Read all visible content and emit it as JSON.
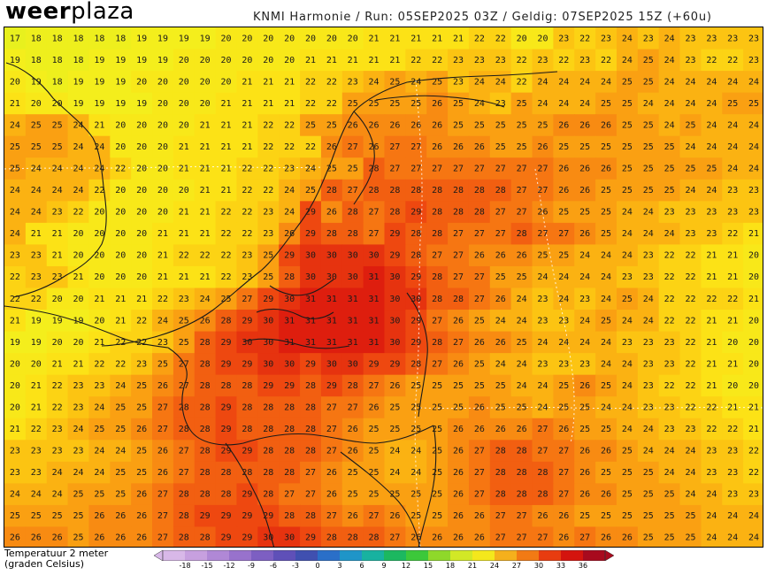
{
  "header": {
    "logo_bold": "weer",
    "logo_light": "plaza",
    "run_info": "KNMI Harmonie / Run: 05SEP2025 03Z / Geldig: 07SEP2025 15Z (+60u)"
  },
  "legend": {
    "title_line1": "Temperatuur 2 meter",
    "title_line2": "(graden Celsius)",
    "ticks": [
      -18,
      -15,
      -12,
      -9,
      -6,
      -3,
      0,
      3,
      6,
      9,
      12,
      15,
      18,
      21,
      24,
      27,
      30,
      33,
      36
    ],
    "colors": [
      "#d8b8e8",
      "#c7a0df",
      "#b088d6",
      "#9872cc",
      "#7d5fc2",
      "#5f50b8",
      "#4050b0",
      "#2a6fc8",
      "#1f95c8",
      "#18b2a0",
      "#1cb860",
      "#3cc83a",
      "#8fd82a",
      "#d2e826",
      "#f4e81c",
      "#f5b01c",
      "#f27a14",
      "#e83c10",
      "#d4140e",
      "#a80a1e"
    ]
  },
  "map": {
    "cols": 36,
    "rows": 24,
    "temps": [
      [
        17,
        18,
        18,
        18,
        18,
        18,
        19,
        19,
        19,
        19,
        20,
        20,
        20,
        20,
        20,
        20,
        20,
        21,
        21,
        21,
        21,
        21,
        22,
        22,
        20,
        20,
        23,
        22,
        23,
        24,
        23,
        24,
        23,
        23,
        23,
        23
      ],
      [
        19,
        18,
        18,
        18,
        19,
        19,
        19,
        19,
        20,
        20,
        20,
        20,
        20,
        20,
        21,
        21,
        21,
        21,
        21,
        22,
        22,
        23,
        23,
        23,
        22,
        23,
        22,
        23,
        22,
        24,
        25,
        24,
        23,
        22,
        22,
        23
      ],
      [
        20,
        19,
        18,
        19,
        19,
        19,
        20,
        20,
        20,
        20,
        20,
        21,
        21,
        21,
        22,
        22,
        23,
        24,
        25,
        24,
        25,
        23,
        24,
        24,
        22,
        24,
        24,
        24,
        24,
        25,
        25,
        24,
        24,
        24,
        24,
        24
      ],
      [
        21,
        20,
        20,
        19,
        19,
        19,
        19,
        20,
        20,
        20,
        21,
        21,
        21,
        21,
        22,
        22,
        25,
        25,
        25,
        25,
        26,
        25,
        24,
        23,
        25,
        24,
        24,
        24,
        25,
        25,
        24,
        24,
        24,
        24,
        25,
        25
      ],
      [
        24,
        25,
        25,
        24,
        21,
        20,
        20,
        20,
        20,
        21,
        21,
        21,
        22,
        22,
        25,
        25,
        26,
        26,
        26,
        26,
        26,
        25,
        25,
        25,
        25,
        25,
        26,
        26,
        26,
        25,
        25,
        24,
        25,
        24,
        24,
        24
      ],
      [
        25,
        25,
        25,
        24,
        24,
        20,
        20,
        20,
        21,
        21,
        21,
        21,
        22,
        22,
        22,
        26,
        27,
        26,
        27,
        27,
        26,
        26,
        26,
        25,
        25,
        26,
        25,
        25,
        25,
        25,
        25,
        25,
        24,
        24,
        24,
        24
      ],
      [
        25,
        24,
        24,
        24,
        24,
        22,
        20,
        20,
        21,
        21,
        21,
        22,
        22,
        23,
        24,
        25,
        25,
        28,
        27,
        27,
        27,
        27,
        27,
        27,
        27,
        27,
        26,
        26,
        26,
        25,
        25,
        25,
        25,
        25,
        24,
        24
      ],
      [
        24,
        24,
        24,
        24,
        22,
        20,
        20,
        20,
        20,
        21,
        21,
        22,
        22,
        24,
        25,
        28,
        27,
        28,
        28,
        28,
        28,
        28,
        28,
        28,
        27,
        27,
        26,
        26,
        25,
        25,
        25,
        25,
        24,
        24,
        23,
        23
      ],
      [
        24,
        24,
        23,
        22,
        20,
        20,
        20,
        20,
        21,
        21,
        22,
        22,
        23,
        24,
        29,
        26,
        28,
        27,
        28,
        29,
        28,
        28,
        28,
        27,
        27,
        26,
        25,
        25,
        25,
        24,
        24,
        23,
        23,
        23,
        23,
        23
      ],
      [
        24,
        21,
        21,
        20,
        20,
        20,
        20,
        21,
        21,
        21,
        22,
        22,
        23,
        26,
        29,
        28,
        28,
        27,
        29,
        28,
        28,
        27,
        27,
        27,
        28,
        27,
        27,
        26,
        25,
        24,
        24,
        24,
        23,
        23,
        22,
        21
      ],
      [
        23,
        23,
        21,
        20,
        20,
        20,
        20,
        21,
        22,
        22,
        22,
        23,
        25,
        29,
        30,
        30,
        30,
        30,
        29,
        28,
        27,
        27,
        26,
        26,
        26,
        25,
        25,
        24,
        24,
        24,
        23,
        22,
        22,
        21,
        21,
        20
      ],
      [
        22,
        23,
        23,
        21,
        20,
        20,
        20,
        21,
        21,
        21,
        22,
        23,
        25,
        28,
        30,
        30,
        30,
        31,
        30,
        29,
        28,
        27,
        27,
        25,
        25,
        24,
        24,
        24,
        24,
        23,
        23,
        22,
        22,
        21,
        21,
        20
      ],
      [
        22,
        22,
        20,
        20,
        21,
        21,
        21,
        22,
        23,
        24,
        25,
        27,
        29,
        30,
        31,
        31,
        31,
        31,
        30,
        30,
        28,
        28,
        27,
        26,
        24,
        23,
        24,
        23,
        24,
        25,
        24,
        22,
        22,
        22,
        22,
        21
      ],
      [
        21,
        19,
        19,
        19,
        20,
        21,
        22,
        24,
        25,
        26,
        28,
        29,
        30,
        31,
        31,
        31,
        31,
        31,
        30,
        29,
        27,
        26,
        25,
        24,
        24,
        23,
        23,
        24,
        25,
        24,
        24,
        22,
        22,
        21,
        21,
        20
      ],
      [
        19,
        19,
        20,
        20,
        21,
        22,
        22,
        23,
        25,
        28,
        29,
        30,
        30,
        31,
        31,
        31,
        31,
        31,
        30,
        29,
        28,
        27,
        26,
        26,
        25,
        24,
        24,
        24,
        24,
        23,
        23,
        23,
        22,
        21,
        20,
        20
      ],
      [
        20,
        20,
        21,
        21,
        22,
        22,
        23,
        25,
        27,
        28,
        29,
        29,
        30,
        30,
        29,
        30,
        30,
        29,
        29,
        28,
        27,
        26,
        25,
        24,
        24,
        23,
        23,
        23,
        24,
        24,
        23,
        23,
        22,
        21,
        21,
        20
      ],
      [
        20,
        21,
        22,
        23,
        23,
        24,
        25,
        26,
        27,
        28,
        28,
        28,
        29,
        29,
        28,
        29,
        28,
        27,
        26,
        25,
        25,
        25,
        25,
        25,
        24,
        24,
        25,
        26,
        25,
        24,
        23,
        22,
        22,
        21,
        20,
        20
      ],
      [
        20,
        21,
        22,
        23,
        24,
        25,
        25,
        27,
        28,
        28,
        29,
        28,
        28,
        28,
        28,
        27,
        27,
        26,
        25,
        25,
        25,
        25,
        26,
        25,
        25,
        24,
        25,
        25,
        24,
        24,
        23,
        23,
        22,
        22,
        21,
        21
      ],
      [
        21,
        22,
        23,
        24,
        25,
        25,
        26,
        27,
        28,
        28,
        29,
        28,
        28,
        28,
        28,
        27,
        26,
        25,
        25,
        25,
        25,
        26,
        26,
        26,
        26,
        27,
        26,
        25,
        25,
        24,
        24,
        23,
        23,
        22,
        22,
        21
      ],
      [
        23,
        23,
        23,
        23,
        24,
        24,
        25,
        26,
        27,
        28,
        29,
        29,
        28,
        28,
        28,
        27,
        26,
        25,
        24,
        24,
        25,
        26,
        27,
        28,
        28,
        27,
        27,
        26,
        26,
        25,
        24,
        24,
        24,
        23,
        23,
        22
      ],
      [
        23,
        23,
        24,
        24,
        24,
        25,
        25,
        26,
        27,
        28,
        28,
        28,
        28,
        28,
        27,
        26,
        25,
        25,
        24,
        24,
        25,
        26,
        27,
        28,
        28,
        28,
        27,
        26,
        25,
        25,
        25,
        24,
        24,
        23,
        23,
        22
      ],
      [
        24,
        24,
        24,
        25,
        25,
        25,
        26,
        27,
        28,
        28,
        28,
        29,
        28,
        27,
        27,
        26,
        25,
        25,
        25,
        25,
        25,
        26,
        27,
        28,
        28,
        28,
        27,
        26,
        26,
        25,
        25,
        25,
        24,
        24,
        23,
        23
      ],
      [
        25,
        25,
        25,
        25,
        26,
        26,
        26,
        27,
        28,
        29,
        29,
        29,
        29,
        28,
        28,
        27,
        26,
        27,
        26,
        25,
        25,
        26,
        26,
        27,
        27,
        26,
        26,
        25,
        25,
        25,
        25,
        25,
        25,
        24,
        24,
        24
      ],
      [
        26,
        26,
        26,
        25,
        26,
        26,
        26,
        27,
        28,
        28,
        29,
        29,
        30,
        30,
        29,
        28,
        28,
        28,
        27,
        26,
        26,
        26,
        26,
        27,
        27,
        27,
        26,
        27,
        26,
        26,
        25,
        25,
        25,
        24,
        24,
        24
      ]
    ]
  }
}
